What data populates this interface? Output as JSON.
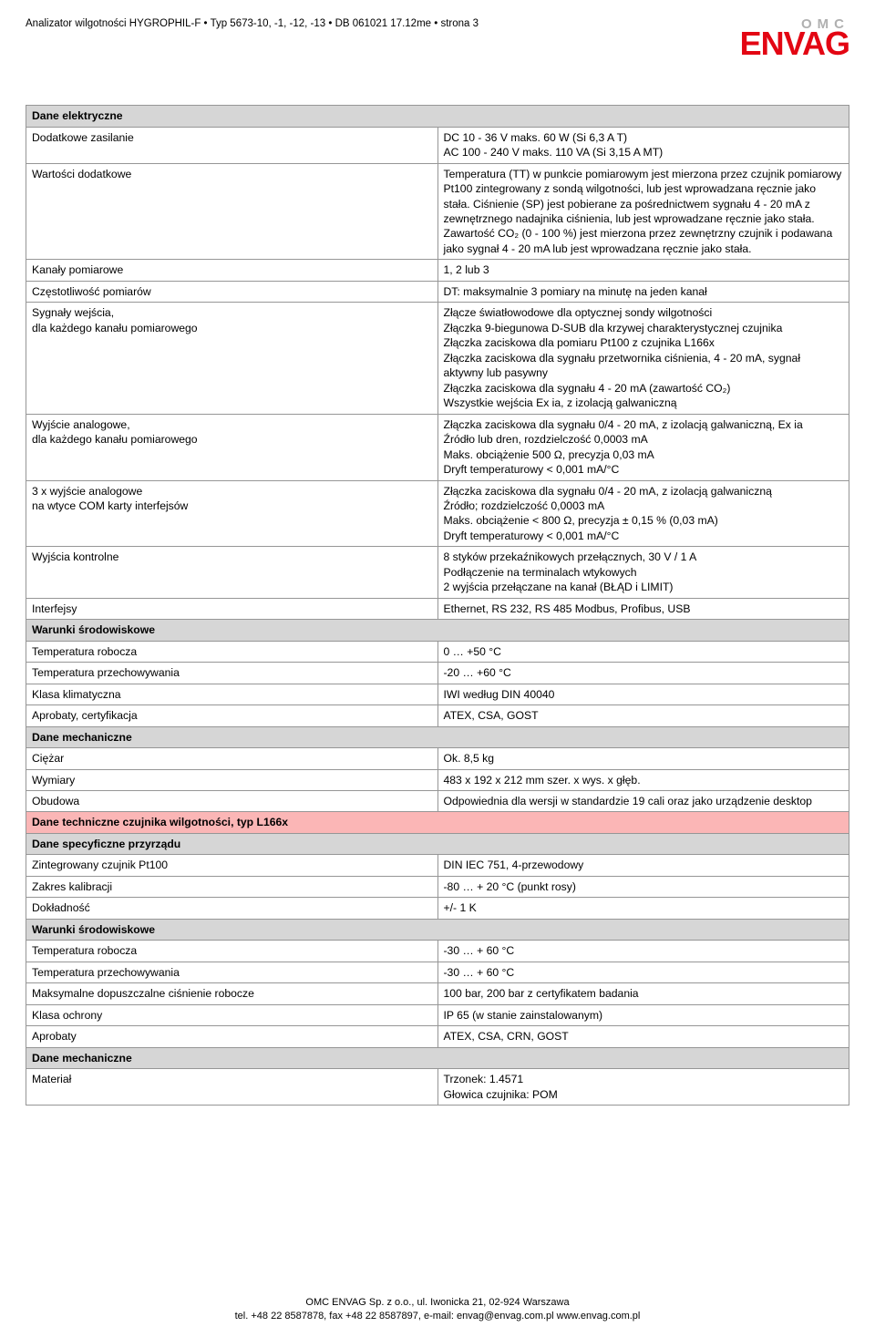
{
  "header": {
    "line": "Analizator wilgotności HYGROPHIL-F  •  Typ 5673-10, -1, -12, -13  •  DB 061021  17.12me  •  strona 3",
    "logo_top": "OMC",
    "logo_main": "ENVAG"
  },
  "sections": [
    {
      "type": "section",
      "text": "Dane elektryczne"
    },
    {
      "type": "row",
      "label": "Dodatkowe zasilanie",
      "value": "DC 10 - 36 V maks. 60 W (Si 6,3 A T)\nAC 100 - 240 V maks. 110 VA (Si 3,15 A MT)"
    },
    {
      "type": "row",
      "label": "Wartości dodatkowe",
      "value": "Temperatura (TT) w punkcie pomiarowym jest mierzona przez czujnik pomiarowy Pt100 zintegrowany z sondą wilgotności, lub jest wprowadzana ręcznie jako stała. Ciśnienie (SP) jest pobierane za pośrednictwem sygnału 4 - 20 mA z zewnętrznego nadajnika ciśnienia, lub jest wprowadzane ręcznie jako stała. Zawartość CO₂ (0 - 100 %) jest mierzona przez zewnętrzny czujnik i podawana jako sygnał 4 - 20 mA lub jest wprowadzana ręcznie jako stała."
    },
    {
      "type": "row",
      "label": "Kanały pomiarowe",
      "value": "1, 2 lub 3"
    },
    {
      "type": "row",
      "label": "Częstotliwość pomiarów",
      "value": "DT: maksymalnie 3 pomiary na minutę na jeden kanał"
    },
    {
      "type": "row",
      "label": "Sygnały wejścia,\ndla każdego kanału pomiarowego",
      "value": "Złącze światłowodowe dla optycznej sondy wilgotności\nZłączka 9-biegunowa D-SUB dla krzywej charakterystycznej czujnika\nZłączka zaciskowa dla pomiaru Pt100 z czujnika L166x\nZłączka zaciskowa dla sygnału przetwornika ciśnienia, 4 - 20 mA, sygnał aktywny lub pasywny\nZłączka zaciskowa dla sygnału 4 - 20 mA (zawartość CO₂)\nWszystkie wejścia Ex ia, z izolacją galwaniczną"
    },
    {
      "type": "row",
      "label": "Wyjście analogowe,\ndla każdego kanału pomiarowego",
      "value": "Złączka zaciskowa dla sygnału 0/4 - 20 mA, z izolacją galwaniczną, Ex ia\nŹródło lub dren, rozdzielczość 0,0003 mA\nMaks. obciążenie 500 Ω, precyzja 0,03 mA\nDryft temperaturowy < 0,001 mA/°C"
    },
    {
      "type": "row",
      "label": "3 x wyjście analogowe\nna wtyce COM karty interfejsów",
      "value": "Złączka zaciskowa dla sygnału 0/4 - 20 mA, z izolacją galwaniczną\nŹródło; rozdzielczość 0,0003 mA\nMaks. obciążenie < 800 Ω, precyzja ± 0,15 % (0,03 mA)\nDryft temperaturowy < 0,001 mA/°C"
    },
    {
      "type": "row",
      "label": "Wyjścia kontrolne",
      "value": "8 styków przekaźnikowych przełącznych, 30 V / 1 A\nPodłączenie na terminalach wtykowych\n2 wyjścia przełączane na kanał (BŁĄD i LIMIT)"
    },
    {
      "type": "row",
      "label": "Interfejsy",
      "value": "Ethernet, RS 232, RS 485 Modbus, Profibus, USB"
    },
    {
      "type": "section",
      "text": "Warunki środowiskowe"
    },
    {
      "type": "row",
      "label": "Temperatura robocza",
      "value": "0 … +50 °C"
    },
    {
      "type": "row",
      "label": "Temperatura przechowywania",
      "value": "-20 … +60 °C"
    },
    {
      "type": "row",
      "label": "Klasa klimatyczna",
      "value": "IWI według DIN 40040"
    },
    {
      "type": "row",
      "label": "Aprobaty, certyfikacja",
      "value": "ATEX, CSA, GOST"
    },
    {
      "type": "section",
      "text": "Dane mechaniczne"
    },
    {
      "type": "row",
      "label": "Ciężar",
      "value": "Ok. 8,5 kg"
    },
    {
      "type": "row",
      "label": "Wymiary",
      "value": "483 x 192 x 212 mm szer. x wys. x głęb."
    },
    {
      "type": "row",
      "label": "Obudowa",
      "value": "Odpowiednia dla wersji w standardzie 19 cali oraz jako urządzenie desktop"
    },
    {
      "type": "section-red",
      "text": "Dane techniczne czujnika wilgotności, typ L166x"
    },
    {
      "type": "section",
      "text": "Dane specyficzne przyrządu"
    },
    {
      "type": "row",
      "label": "Zintegrowany czujnik Pt100",
      "value": "DIN IEC 751, 4-przewodowy"
    },
    {
      "type": "row",
      "label": "Zakres kalibracji",
      "value": "-80 … + 20 °C (punkt rosy)"
    },
    {
      "type": "row",
      "label": "Dokładność",
      "value": "+/- 1 K"
    },
    {
      "type": "section",
      "text": "Warunki środowiskowe"
    },
    {
      "type": "row",
      "label": "Temperatura robocza",
      "value": "-30 … + 60 °C"
    },
    {
      "type": "row",
      "label": "Temperatura przechowywania",
      "value": "-30 … + 60 °C"
    },
    {
      "type": "row",
      "label": "Maksymalne dopuszczalne ciśnienie robocze",
      "value": "100 bar, 200 bar z certyfikatem badania"
    },
    {
      "type": "row",
      "label": "Klasa ochrony",
      "value": "IP 65 (w stanie zainstalowanym)"
    },
    {
      "type": "row",
      "label": "Aprobaty",
      "value": "ATEX, CSA, CRN, GOST"
    },
    {
      "type": "section",
      "text": "Dane mechaniczne"
    },
    {
      "type": "row",
      "label": "Materiał",
      "value": "Trzonek:                         1.4571\nGłowica czujnika:           POM"
    }
  ],
  "footer": {
    "line1": "OMC ENVAG Sp. z o.o., ul. Iwonicka 21, 02-924 Warszawa",
    "line2": "tel. +48 22 8587878, fax +48 22 8587897, e-mail: envag@envag.com.pl  www.envag.com.pl"
  }
}
